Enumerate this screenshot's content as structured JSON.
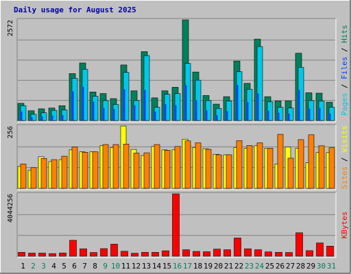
{
  "chart_data": {
    "title": "Daily usage for August 2025",
    "type": "bar",
    "categories": [
      "1",
      "2",
      "3",
      "4",
      "5",
      "6",
      "7",
      "8",
      "9",
      "10",
      "11",
      "12",
      "13",
      "14",
      "15",
      "16",
      "17",
      "18",
      "19",
      "20",
      "21",
      "22",
      "23",
      "24",
      "25",
      "26",
      "27",
      "28",
      "29",
      "30",
      "31"
    ],
    "weekend_categories": [
      "2",
      "3",
      "9",
      "10",
      "16",
      "17",
      "23",
      "24",
      "30",
      "31"
    ],
    "colors": {
      "hits": "#00805C",
      "files": "#0040FF",
      "pages": "#00C8E8",
      "visits": "#FFFF00",
      "sites": "#FF8000",
      "kbytes": "#FF0000",
      "plot_bg": "#C0C0C0",
      "title": "#0000A0",
      "weekday_tick": "#000000",
      "weekend_tick": "#00805C"
    },
    "panels": [
      {
        "name": "requests",
        "ymax": 2572,
        "max_label": "2572",
        "series": [
          {
            "name": "Hits",
            "key": "hits",
            "values": [
              440,
              250,
              300,
              320,
              380,
              1200,
              1470,
              730,
              690,
              560,
              1420,
              760,
              1760,
              580,
              760,
              850,
              2572,
              1240,
              640,
              420,
              610,
              1520,
              950,
              2080,
              610,
              500,
              500,
              1720,
              710,
              700,
              470
            ]
          },
          {
            "name": "Files",
            "key": "files",
            "values": [
              230,
              90,
              110,
              130,
              140,
              750,
              860,
              480,
              320,
              290,
              800,
              390,
              780,
              230,
              420,
              390,
              900,
              520,
              260,
              140,
              240,
              910,
              470,
              690,
              250,
              200,
              180,
              780,
              300,
              320,
              180
            ]
          },
          {
            "name": "Pages",
            "key": "pages",
            "values": [
              380,
              160,
              200,
              260,
              270,
              1080,
              1310,
              620,
              510,
              410,
              1230,
              510,
              1660,
              340,
              670,
              690,
              1460,
              1030,
              510,
              310,
              500,
              1250,
              800,
              1890,
              480,
              340,
              320,
              1360,
              510,
              500,
              340
            ]
          }
        ],
        "labels": [
          "Pages",
          "Files",
          "Hits"
        ]
      },
      {
        "name": "visitors",
        "ymax": 256,
        "max_label": "256",
        "series": [
          {
            "name": "Visits",
            "key": "visits",
            "values": [
              90,
              75,
              130,
              110,
              118,
              158,
              150,
              150,
              176,
              167,
              256,
              160,
              135,
              172,
              158,
              158,
              202,
              168,
              163,
              140,
              138,
              168,
              165,
              175,
              165,
              100,
              170,
              165,
              105,
              147,
              147
            ]
          },
          {
            "name": "Sites",
            "key": "sites",
            "values": [
              100,
              85,
              123,
              118,
              132,
              170,
              148,
              150,
              180,
              180,
              182,
              145,
              146,
              180,
              156,
              172,
              195,
              187,
              160,
              138,
              138,
              196,
              176,
              187,
              165,
              222,
              124,
              200,
              220,
              175,
              167
            ]
          }
        ],
        "labels": [
          "Sites",
          "Visits"
        ]
      },
      {
        "name": "kbytes",
        "ymax": 4044256,
        "max_label": "4044256",
        "series": [
          {
            "name": "KBytes",
            "key": "kbytes",
            "values": [
              250000,
              200000,
              200000,
              170000,
              210000,
              1030000,
              480000,
              240000,
              490000,
              780000,
              320000,
              190000,
              250000,
              250000,
              350000,
              4044256,
              420000,
              310000,
              290000,
              460000,
              420000,
              1180000,
              480000,
              420000,
              280000,
              250000,
              240000,
              1520000,
              360000,
              860000,
              650000
            ]
          }
        ],
        "labels": [
          "KBytes"
        ]
      }
    ]
  }
}
